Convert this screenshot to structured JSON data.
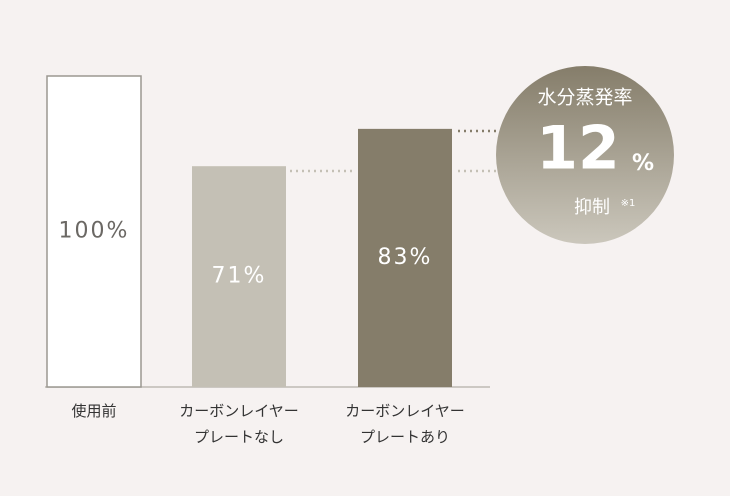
{
  "chart_data": {
    "type": "bar",
    "categories": [
      "使用前",
      "カーボンレイヤー\nプレートなし",
      "カーボンレイヤー\nプレートあり"
    ],
    "values": [
      100,
      71,
      83
    ],
    "value_labels": [
      "100%",
      "71%",
      "83%"
    ],
    "colors": [
      "#ffffff",
      "#c4c0b5",
      "#857d6a"
    ],
    "ylim": [
      0,
      100
    ],
    "badge": {
      "title": "水分蒸発率",
      "value": 12,
      "unit": "%",
      "suffix": "抑制",
      "note": "※1"
    }
  }
}
